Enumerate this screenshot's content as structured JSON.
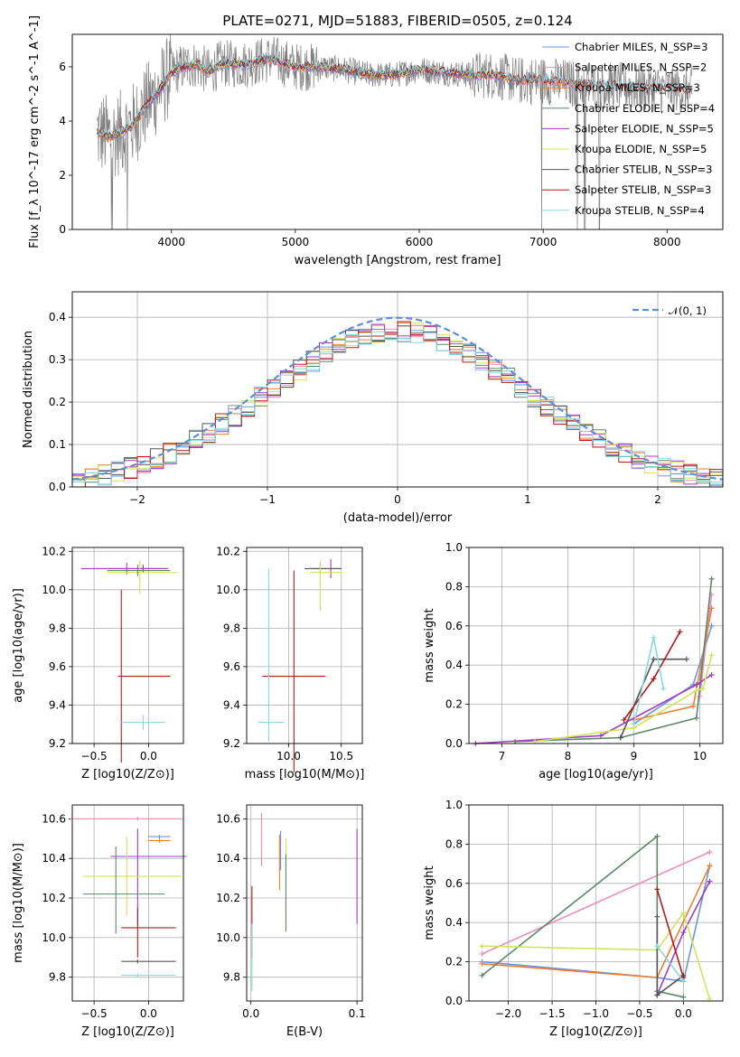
{
  "figure": {
    "title": "PLATE=0271, MJD=51883, FIBERID=0505, z=0.124"
  },
  "colors": {
    "chabrier_miles": "#6a93e0",
    "salpeter_miles": "#e98fb8",
    "kroupa_miles": "#ef7f2e",
    "chabrier_elodie": "#5c8868",
    "salpeter_elodie": "#a03cc0",
    "kroupa_elodie": "#cfe45a",
    "chabrier_stelib": "#555555",
    "salpeter_stelib": "#b01c1c",
    "kroupa_stelib": "#86d9e0",
    "data": "#808080",
    "normal": "#5b8fd6"
  },
  "chart_data": [
    {
      "id": "spectrum",
      "type": "line",
      "title": "PLATE=0271, MJD=51883, FIBERID=0505, z=0.124",
      "xlabel": "wavelength [Angstrom, rest frame]",
      "ylabel": "Flux [f_λ 10^-17 erg cm^-2 s^-1 A^-1]",
      "xlim": [
        3200,
        8450
      ],
      "ylim": [
        0,
        7.2
      ],
      "xticks": [
        "4000",
        "5000",
        "6000",
        "7000",
        "8000"
      ],
      "yticks": [
        "0",
        "2",
        "4",
        "6"
      ],
      "grid": false,
      "legend_position": "top-right",
      "legend": [
        {
          "key": "chabrier_miles",
          "label": "Chabrier MILES, N_SSP=3"
        },
        {
          "key": "salpeter_miles",
          "label": "Salpeter MILES, N_SSP=2"
        },
        {
          "key": "kroupa_miles",
          "label": "Kroupa MILES, N_SSP=3"
        },
        {
          "key": "chabrier_elodie",
          "label": "Chabrier ELODIE, N_SSP=4"
        },
        {
          "key": "salpeter_elodie",
          "label": "Salpeter ELODIE, N_SSP=5"
        },
        {
          "key": "kroupa_elodie",
          "label": "Kroupa ELODIE, N_SSP=5"
        },
        {
          "key": "chabrier_stelib",
          "label": "Chabrier STELIB, N_SSP=3"
        },
        {
          "key": "salpeter_stelib",
          "label": "Salpeter STELIB, N_SSP=3"
        },
        {
          "key": "kroupa_stelib",
          "label": "Kroupa STELIB, N_SSP=4"
        }
      ],
      "model_continuum": {
        "x": [
          3400,
          3500,
          3600,
          3700,
          3800,
          3900,
          4000,
          4100,
          4200,
          4300,
          4400,
          4600,
          4800,
          5000,
          5200,
          5400,
          5600,
          5800,
          6000,
          6200,
          6400,
          6600,
          6800,
          7000,
          7200,
          7400,
          7600,
          7800,
          8000,
          8200
        ],
        "y": [
          3.6,
          3.4,
          3.6,
          3.9,
          4.6,
          5.1,
          5.8,
          6.0,
          6.1,
          5.8,
          6.1,
          6.1,
          6.3,
          6.0,
          6.0,
          5.9,
          5.7,
          5.7,
          5.9,
          5.8,
          5.7,
          5.7,
          5.5,
          5.5,
          5.4,
          5.3,
          5.3,
          5.2,
          5.2,
          5.1
        ]
      }
    },
    {
      "id": "residuals",
      "type": "bar",
      "xlabel": "(data-model)/error",
      "ylabel": "Normed distribution",
      "xlim": [
        -2.5,
        2.5
      ],
      "ylim": [
        0,
        0.46
      ],
      "xticks": [
        "−2",
        "−1",
        "0",
        "1",
        "2"
      ],
      "yticks": [
        "0.0",
        "0.1",
        "0.2",
        "0.3",
        "0.4"
      ],
      "grid": true,
      "legend_position": "top-right",
      "legend": [
        {
          "key": "normal",
          "label": "𝒩(0, 1)"
        }
      ],
      "normal_curve": {
        "mean": 0,
        "sigma": 1
      }
    },
    {
      "id": "age-vs-metallicity",
      "type": "scatter",
      "xlabel": "Z [log10(Z/Z⊙)]",
      "ylabel": "age  [log10(age/yr)]",
      "xlim": [
        -0.7,
        0.32
      ],
      "ylim": [
        9.2,
        10.22
      ],
      "xticks": [
        "−0.5",
        "0.0"
      ],
      "yticks": [
        "9.2",
        "9.4",
        "9.6",
        "9.8",
        "10.0",
        "10.2"
      ],
      "grid": true,
      "errorbars": [
        {
          "key": "chabrier_stelib",
          "x": -0.05,
          "y": 10.11,
          "xerr": [
            0.32,
            0.23
          ],
          "yerr": [
            0.02,
            0.02
          ]
        },
        {
          "key": "salpeter_elodie",
          "x": -0.2,
          "y": 10.11,
          "xerr": [
            0.42,
            0.38
          ],
          "yerr": [
            0.03,
            0.03
          ]
        },
        {
          "key": "kroupa_elodie",
          "x": -0.08,
          "y": 10.09,
          "xerr": [
            0.3,
            0.35
          ],
          "yerr": [
            0.11,
            0.06
          ]
        },
        {
          "key": "chabrier_elodie",
          "x": -0.1,
          "y": 10.1,
          "xerr": [
            0.28,
            0.3
          ],
          "yerr": [
            0.03,
            0.03
          ]
        },
        {
          "key": "salpeter_stelib",
          "x": -0.25,
          "y": 9.55,
          "xerr": [
            0.03,
            0.45
          ],
          "yerr": [
            0.45,
            0.45
          ]
        },
        {
          "key": "kroupa_stelib",
          "x": -0.05,
          "y": 9.31,
          "xerr": [
            0.2,
            0.2
          ],
          "yerr": [
            0.04,
            0.04
          ]
        }
      ]
    },
    {
      "id": "age-vs-mass",
      "type": "scatter",
      "xlabel": "mass [log10(M/M⊙)]",
      "ylabel": "",
      "xlim": [
        9.6,
        10.7
      ],
      "ylim": [
        9.2,
        10.22
      ],
      "xticks": [
        "10.0",
        "10.5"
      ],
      "yticks": [
        "9.2",
        "9.4",
        "9.6",
        "9.8",
        "10.0",
        "10.2"
      ],
      "grid": true,
      "errorbars": [
        {
          "key": "salpeter_elodie",
          "x": 10.4,
          "y": 10.11,
          "xerr": [
            0.2,
            0.1
          ],
          "yerr": [
            0.05,
            0.05
          ]
        },
        {
          "key": "chabrier_stelib",
          "x": 10.3,
          "y": 10.11,
          "xerr": [
            0.15,
            0.2
          ],
          "yerr": [
            0.03,
            0.03
          ]
        },
        {
          "key": "kroupa_elodie",
          "x": 10.3,
          "y": 10.09,
          "xerr": [
            0.1,
            0.2
          ],
          "yerr": [
            0.2,
            0.06
          ]
        },
        {
          "key": "salpeter_stelib",
          "x": 10.05,
          "y": 9.55,
          "xerr": [
            0.3,
            0.3
          ],
          "yerr": [
            0.5,
            0.55
          ]
        },
        {
          "key": "kroupa_stelib",
          "x": 9.81,
          "y": 9.31,
          "xerr": [
            0.1,
            0.15
          ],
          "yerr": [
            0.1,
            0.8
          ]
        }
      ]
    },
    {
      "id": "mass-weight-vs-age",
      "type": "line",
      "xlabel": "age  [log10(age/yr)]",
      "ylabel": "mass weight",
      "xlim": [
        6.5,
        10.35
      ],
      "ylim": [
        0,
        1.0
      ],
      "xticks": [
        "7",
        "8",
        "9",
        "10"
      ],
      "yticks": [
        "0.0",
        "0.2",
        "0.4",
        "0.6",
        "0.8",
        "1.0"
      ],
      "grid": true,
      "series": [
        {
          "key": "chabrier_miles",
          "x": [
            9.0,
            9.9,
            10.18
          ],
          "y": [
            0.1,
            0.3,
            0.6
          ]
        },
        {
          "key": "salpeter_miles",
          "x": [
            10.0,
            10.18
          ],
          "y": [
            0.24,
            0.76
          ]
        },
        {
          "key": "kroupa_miles",
          "x": [
            9.0,
            9.9,
            10.18
          ],
          "y": [
            0.12,
            0.19,
            0.69
          ]
        },
        {
          "key": "chabrier_elodie",
          "x": [
            7.2,
            8.8,
            9.95,
            10.18
          ],
          "y": [
            0.01,
            0.03,
            0.13,
            0.84
          ]
        },
        {
          "key": "salpeter_elodie",
          "x": [
            6.6,
            8.5,
            9.95,
            10.18
          ],
          "y": [
            0.0,
            0.04,
            0.3,
            0.35
          ]
        },
        {
          "key": "kroupa_elodie",
          "x": [
            7.5,
            9.0,
            9.95,
            10.05,
            10.18
          ],
          "y": [
            0.01,
            0.08,
            0.27,
            0.28,
            0.45
          ]
        },
        {
          "key": "chabrier_stelib",
          "x": [
            8.8,
            9.3,
            9.8
          ],
          "y": [
            0.03,
            0.43,
            0.43
          ]
        },
        {
          "key": "salpeter_stelib",
          "x": [
            8.85,
            9.3,
            9.7
          ],
          "y": [
            0.12,
            0.33,
            0.57
          ]
        },
        {
          "key": "kroupa_stelib",
          "x": [
            9.0,
            9.3,
            9.45
          ],
          "y": [
            0.1,
            0.54,
            0.28
          ]
        }
      ]
    },
    {
      "id": "mass-vs-metallicity",
      "type": "scatter",
      "xlabel": "Z [log10(Z/Z⊙)]",
      "ylabel": "mass [log10(M/M⊙)]",
      "xlim": [
        -0.7,
        0.32
      ],
      "ylim": [
        9.68,
        10.67
      ],
      "xticks": [
        "−0.5",
        "0.0"
      ],
      "yticks": [
        "9.8",
        "10.0",
        "10.2",
        "10.4",
        "10.6"
      ],
      "grid": true,
      "errorbars": [
        {
          "key": "salpeter_miles",
          "x": -0.1,
          "y": 10.6,
          "xerr": [
            0.62,
            0.4
          ],
          "yerr": [
            0.01,
            0.01
          ]
        },
        {
          "key": "chabrier_miles",
          "x": 0.1,
          "y": 10.51,
          "xerr": [
            0.1,
            0.1
          ],
          "yerr": [
            0.01,
            0.01
          ]
        },
        {
          "key": "kroupa_miles",
          "x": 0.1,
          "y": 10.49,
          "xerr": [
            0.1,
            0.1
          ],
          "yerr": [
            0.01,
            0.01
          ]
        },
        {
          "key": "salpeter_elodie",
          "x": -0.1,
          "y": 10.41,
          "xerr": [
            0.25,
            0.45
          ],
          "yerr": [
            0.35,
            0.14
          ]
        },
        {
          "key": "kroupa_elodie",
          "x": -0.2,
          "y": 10.31,
          "xerr": [
            0.4,
            0.5
          ],
          "yerr": [
            0.2,
            0.2
          ]
        },
        {
          "key": "chabrier_elodie",
          "x": -0.3,
          "y": 10.22,
          "xerr": [
            0.3,
            0.45
          ],
          "yerr": [
            0.2,
            0.24
          ]
        },
        {
          "key": "salpeter_stelib",
          "x": -0.1,
          "y": 10.05,
          "xerr": [
            0.15,
            0.35
          ],
          "yerr": [
            0.15,
            0.1
          ]
        },
        {
          "key": "chabrier_stelib",
          "x": -0.1,
          "y": 9.88,
          "xerr": [
            0.15,
            0.35
          ],
          "yerr": [
            0.01,
            0.01
          ]
        },
        {
          "key": "kroupa_stelib",
          "x": -0.1,
          "y": 9.81,
          "xerr": [
            0.15,
            0.35
          ],
          "yerr": [
            0.01,
            0.01
          ]
        }
      ]
    },
    {
      "id": "ebv",
      "type": "scatter",
      "xlabel": "E(B-V)",
      "ylabel": "",
      "xlim": [
        -0.004,
        0.105
      ],
      "ylim": [
        9.68,
        10.67
      ],
      "xticks": [
        "0.0",
        "0.1"
      ],
      "yticks": [
        "9.8",
        "10.0",
        "10.2",
        "10.4",
        "10.6"
      ],
      "grid": true,
      "errorbars": [
        {
          "key": "salpeter_miles",
          "x": 0.01,
          "y": 10.48,
          "xerr": [
            0,
            0
          ],
          "yerr": [
            0.12,
            0.15
          ]
        },
        {
          "key": "chabrier_miles",
          "x": 0.028,
          "y": 10.44,
          "xerr": [
            0,
            0
          ],
          "yerr": [
            0.1,
            0.1
          ]
        },
        {
          "key": "kroupa_miles",
          "x": 0.027,
          "y": 10.38,
          "xerr": [
            0,
            0
          ],
          "yerr": [
            0.14,
            0.14
          ]
        },
        {
          "key": "kroupa_elodie",
          "x": 0.033,
          "y": 10.3,
          "xerr": [
            0,
            0
          ],
          "yerr": [
            0.2,
            0.2
          ]
        },
        {
          "key": "chabrier_elodie",
          "x": 0.033,
          "y": 10.22,
          "xerr": [
            0,
            0
          ],
          "yerr": [
            0.19,
            0.2
          ]
        },
        {
          "key": "salpeter_elodie",
          "x": 0.1,
          "y": 10.31,
          "xerr": [
            0,
            0
          ],
          "yerr": [
            0.24,
            0.24
          ]
        },
        {
          "key": "salpeter_stelib",
          "x": 0.001,
          "y": 10.05,
          "xerr": [
            0,
            0
          ],
          "yerr": [
            0.15,
            0.21
          ]
        },
        {
          "key": "kroupa_stelib",
          "x": 0.001,
          "y": 9.9,
          "xerr": [
            0,
            0
          ],
          "yerr": [
            0.17,
            0.17
          ]
        }
      ]
    },
    {
      "id": "mass-weight-vs-metallicity",
      "type": "line",
      "xlabel": "Z [log10(Z/Z⊙)]",
      "ylabel": "mass weight",
      "xlim": [
        -2.45,
        0.45
      ],
      "ylim": [
        0,
        1.0
      ],
      "xticks": [
        "−2.0",
        "−1.5",
        "−1.0",
        "−0.5",
        "0.0"
      ],
      "yticks": [
        "0.0",
        "0.2",
        "0.4",
        "0.6",
        "0.8",
        "1.0"
      ],
      "grid": true,
      "series": [
        {
          "key": "chabrier_miles",
          "x": [
            -2.3,
            -0.3,
            0.0,
            0.3
          ],
          "y": [
            0.2,
            0.12,
            0.1,
            0.69
          ]
        },
        {
          "key": "salpeter_miles",
          "x": [
            -2.3,
            0.3
          ],
          "y": [
            0.24,
            0.76
          ]
        },
        {
          "key": "kroupa_miles",
          "x": [
            -2.3,
            -0.3,
            0.3
          ],
          "y": [
            0.19,
            0.12,
            0.69
          ]
        },
        {
          "key": "chabrier_elodie",
          "x": [
            -2.3,
            -0.3,
            -0.3,
            0.0
          ],
          "y": [
            0.13,
            0.84,
            0.05,
            0.02
          ]
        },
        {
          "key": "salpeter_elodie",
          "x": [
            -0.3,
            0.0,
            0.3
          ],
          "y": [
            0.03,
            0.35,
            0.61
          ]
        },
        {
          "key": "kroupa_elodie",
          "x": [
            -2.3,
            -0.3,
            0.0,
            0.3
          ],
          "y": [
            0.28,
            0.26,
            0.45,
            0.01
          ]
        },
        {
          "key": "chabrier_stelib",
          "x": [
            -0.3,
            -0.3,
            0.0
          ],
          "y": [
            0.43,
            0.03,
            0.13
          ]
        },
        {
          "key": "salpeter_stelib",
          "x": [
            -0.3,
            0.0
          ],
          "y": [
            0.57,
            0.12
          ]
        },
        {
          "key": "kroupa_stelib",
          "x": [
            -0.3,
            0.0
          ],
          "y": [
            0.28,
            0.1
          ]
        }
      ]
    }
  ]
}
